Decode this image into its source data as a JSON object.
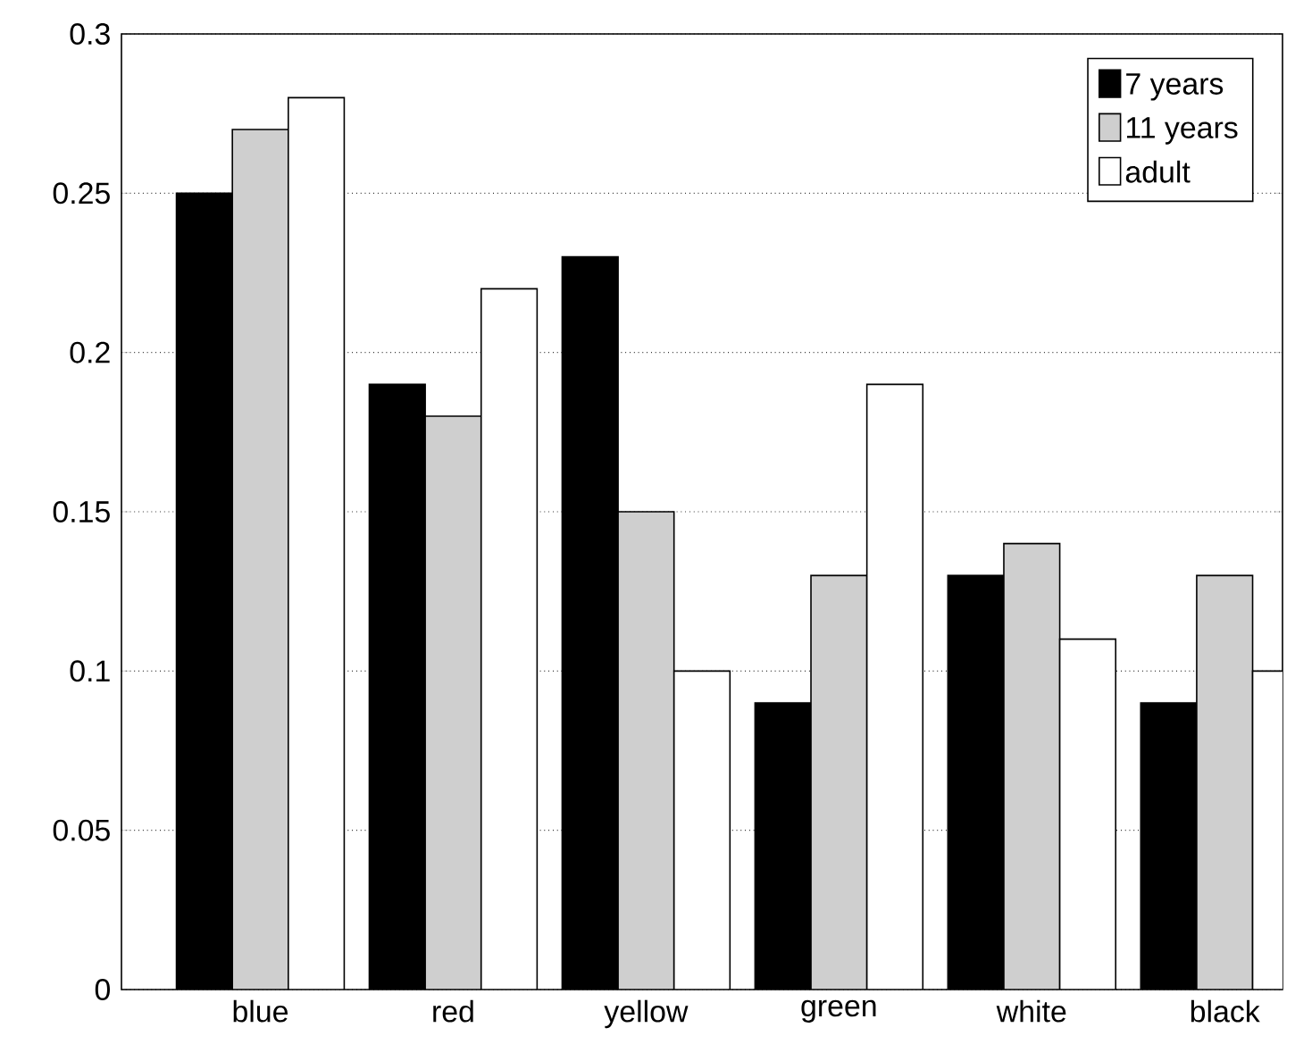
{
  "chart_data": {
    "type": "bar",
    "categories": [
      "blue",
      "red",
      "yellow",
      "green",
      "white",
      "black"
    ],
    "series": [
      {
        "name": "7 years",
        "color": "#000000",
        "values": [
          0.25,
          0.19,
          0.23,
          0.09,
          0.13,
          0.09
        ]
      },
      {
        "name": "11 years",
        "color": "#cfcfcf",
        "values": [
          0.27,
          0.18,
          0.15,
          0.13,
          0.14,
          0.13
        ]
      },
      {
        "name": "adult",
        "color": "#ffffff",
        "values": [
          0.28,
          0.22,
          0.1,
          0.19,
          0.11,
          0.1
        ]
      }
    ],
    "ylim": [
      0,
      0.3
    ],
    "yticks": [
      0,
      0.05,
      0.1,
      0.15,
      0.2,
      0.25,
      0.3
    ],
    "grid": "y",
    "legend": "top right"
  }
}
